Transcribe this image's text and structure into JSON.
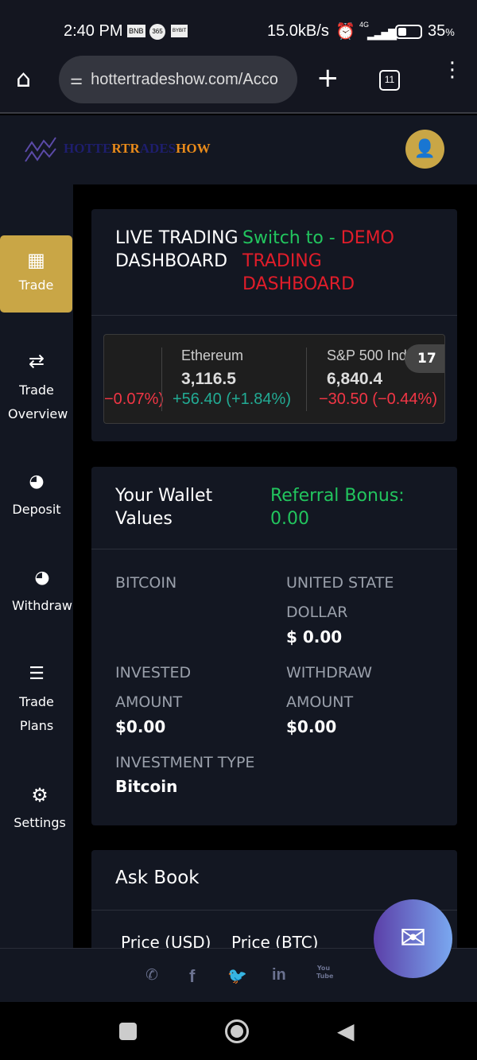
{
  "status": {
    "time": "2:40 PM",
    "apps": [
      "BNB",
      "365",
      "BYBIT"
    ],
    "speed": "15.0kB/s",
    "network": "4G",
    "battery": "35",
    "battery_unit": "%"
  },
  "browser": {
    "url": "hottertradeshow.com/Acco",
    "tabs": "11"
  },
  "logo": {
    "parts": [
      "HOTTE",
      "RTR",
      "ADES",
      "HOW"
    ]
  },
  "sidebar": {
    "items": [
      {
        "label": "Trade",
        "icon": "grid-icon",
        "active": true
      },
      {
        "label": "Trade Overview",
        "icon": "swap-icon"
      },
      {
        "label": "Deposit",
        "icon": "deposit-icon"
      },
      {
        "label": "Withdraw",
        "icon": "withdraw-icon"
      },
      {
        "label": "Trade Plans",
        "icon": "database-icon"
      },
      {
        "label": "Settings",
        "icon": "gear-icon"
      }
    ]
  },
  "dashboard": {
    "title": "LIVE TRADING DASHBOARD",
    "switch_prefix": "Switch to -",
    "switch_target": "DEMO TRADING DASHBOARD"
  },
  "ticker": {
    "items": [
      {
        "name": "",
        "price": "",
        "change": "−0.07%)",
        "direction": "down"
      },
      {
        "name": "Ethereum",
        "price": "3,116.5",
        "change": "+56.40 (+1.84%)",
        "direction": "up"
      },
      {
        "name": "S&P 500 Inde",
        "price": "6,840.4",
        "change": "−30.50 (−0.44%)",
        "direction": "down"
      }
    ],
    "badge": "TV"
  },
  "wallet": {
    "title": "Your Wallet Values",
    "referral_label": "Referral Bonus:",
    "referral_value": "0.00",
    "fields": {
      "bitcoin": "BITCOIN",
      "usd_label": "UNITED STATE DOLLAR",
      "usd_value": "$ 0.00",
      "invested_label": "INVESTED AMOUNT",
      "invested_value": "$0.00",
      "withdraw_label": "WITHDRAW AMOUNT",
      "withdraw_value": "$0.00",
      "type_label": "INVESTMENT TYPE",
      "type_value": "Bitcoin"
    }
  },
  "askbook": {
    "title": "Ask Book",
    "columns": [
      "Price (USD)",
      "Price (BTC)"
    ]
  },
  "footer": {
    "social": [
      "whatsapp",
      "facebook",
      "twitter",
      "linkedin",
      "youtube"
    ],
    "linkedin_text": "in",
    "youtube_text": "You Tube"
  },
  "colors": {
    "accent": "#c9a646",
    "green": "#22c55e",
    "red": "#e11d2a",
    "panel": "#131722"
  }
}
